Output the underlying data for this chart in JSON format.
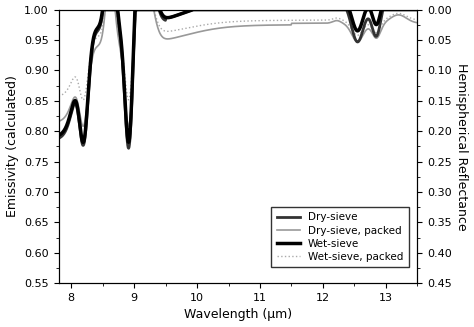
{
  "xlabel": "Wavelength (μm)",
  "ylabel_left": "Emissivity (calculated)",
  "ylabel_right": "Hemispherical Reflectance",
  "xlim": [
    7.8,
    13.5
  ],
  "ylim_left": [
    0.55,
    1.0
  ],
  "ylim_right": [
    0.45,
    0.0
  ],
  "xticks": [
    8.0,
    9.0,
    10.0,
    11.0,
    12.0,
    13.0
  ],
  "yticks_left": [
    0.55,
    0.6,
    0.65,
    0.7,
    0.75,
    0.8,
    0.85,
    0.9,
    0.95,
    1.0
  ],
  "yticks_right": [
    0.45,
    0.4,
    0.35,
    0.3,
    0.25,
    0.2,
    0.15,
    0.1,
    0.05,
    0.0
  ],
  "legend_entries": [
    "Dry-sieve",
    "Dry-sieve, packed",
    "Wet-sieve",
    "Wet-sieve, packed"
  ],
  "line_styles": {
    "dry_sieve": {
      "color": "#333333",
      "lw": 2.0,
      "ls": "-",
      "zorder": 3
    },
    "dry_sieve_packed": {
      "color": "#999999",
      "lw": 1.2,
      "ls": "-",
      "zorder": 2
    },
    "wet_sieve": {
      "color": "#000000",
      "lw": 2.5,
      "ls": "-",
      "zorder": 4
    },
    "wet_sieve_packed": {
      "color": "#aaaaaa",
      "lw": 1.0,
      "ls": ":",
      "zorder": 1
    }
  },
  "background": "#ffffff"
}
